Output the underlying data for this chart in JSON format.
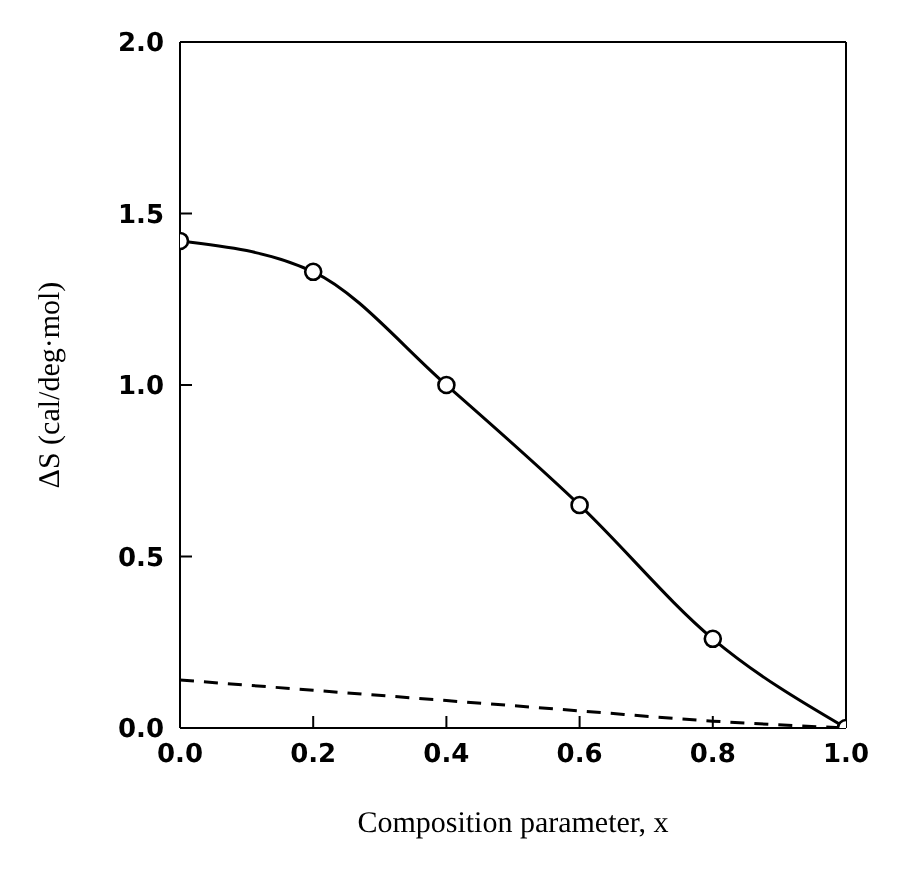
{
  "chart_data": {
    "type": "line",
    "xlabel": "Composition parameter, x",
    "ylabel": "ΔS (cal/deg·mol)",
    "xlim": [
      0,
      1
    ],
    "ylim": [
      0,
      2
    ],
    "xticks": [
      {
        "value": 0,
        "label": "0.0"
      },
      {
        "value": 0.2,
        "label": "0.2"
      },
      {
        "value": 0.4,
        "label": "0.4"
      },
      {
        "value": 0.6,
        "label": "0.6"
      },
      {
        "value": 0.8,
        "label": "0.8"
      },
      {
        "value": 1,
        "label": "1.0"
      }
    ],
    "yticks": [
      {
        "value": 0,
        "label": "0.0"
      },
      {
        "value": 0.5,
        "label": "0.5"
      },
      {
        "value": 1,
        "label": "1.0"
      },
      {
        "value": 1.5,
        "label": "1.5"
      },
      {
        "value": 2,
        "label": "2.0"
      }
    ],
    "series": [
      {
        "color": "#000000",
        "marker": "circle",
        "line_style": "solid",
        "x": [
          0,
          0.2,
          0.4,
          0.6,
          0.8,
          1
        ],
        "values": [
          1.42,
          1.33,
          1.0,
          0.65,
          0.26,
          0.0
        ]
      },
      {
        "color": "#000000",
        "marker": "none",
        "line_style": "dashed",
        "x": [
          0,
          0.2,
          0.4,
          0.6,
          0.8,
          1
        ],
        "values": [
          0.14,
          0.11,
          0.08,
          0.05,
          0.02,
          0.0
        ]
      }
    ]
  }
}
